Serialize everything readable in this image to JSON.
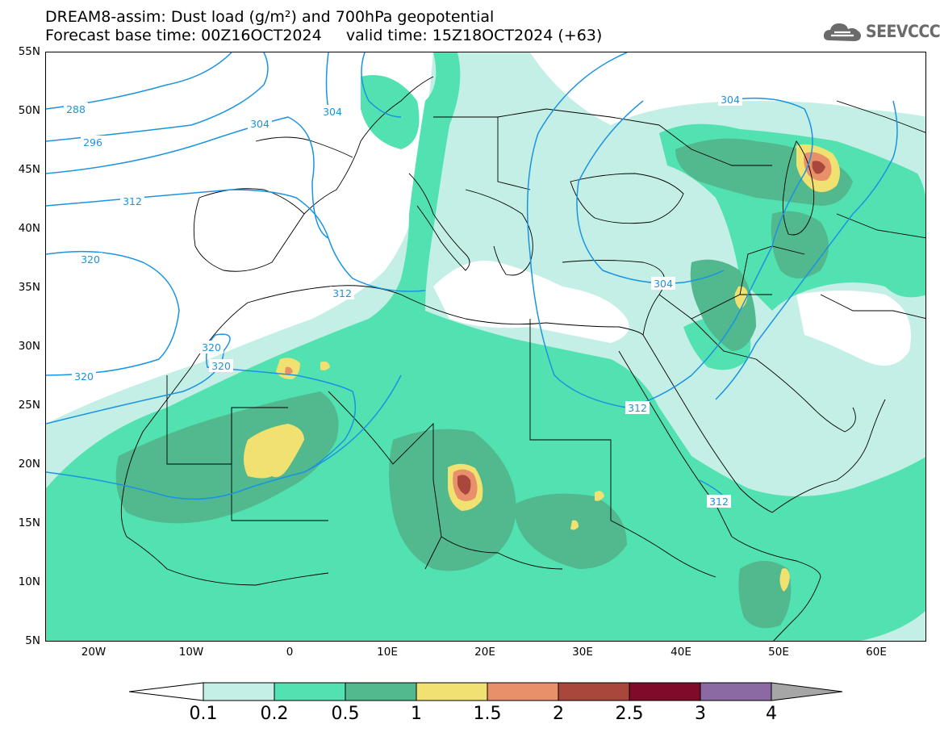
{
  "title_line1": "DREAM8-assim: Dust load (g/m²) and 700hPa geopotential",
  "title_line2": "Forecast base time: 00Z16OCT2024     valid time: 15Z18OCT2024 (+63)",
  "logo": {
    "text": "SEEVCCC",
    "icon": "cloud-icon"
  },
  "lat_labels": [
    "55N",
    "50N",
    "45N",
    "40N",
    "35N",
    "30N",
    "25N",
    "20N",
    "15N",
    "10N",
    "5N"
  ],
  "lon_labels": [
    "20W",
    "10W",
    "0",
    "10E",
    "20E",
    "30E",
    "40E",
    "50E",
    "60E"
  ],
  "contour_labels": [
    "288",
    "296",
    "304",
    "304",
    "312",
    "312",
    "320",
    "320",
    "320",
    "320",
    "304",
    "304",
    "312",
    "312"
  ],
  "colorbar": {
    "ticks": [
      "0.1",
      "0.2",
      "0.5",
      "1",
      "1.5",
      "2",
      "2.5",
      "3",
      "4"
    ],
    "colors": [
      "#ffffff",
      "#c4efe6",
      "#52e1b0",
      "#52b88e",
      "#f1e170",
      "#e8906a",
      "#a9473c",
      "#7f0a29",
      "#8b6aa4",
      "#a6a6a6"
    ]
  },
  "map_colors": {
    "contour": "#1a94e0",
    "border": "#000000"
  }
}
